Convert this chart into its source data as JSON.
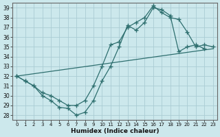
{
  "xlabel": "Humidex (Indice chaleur)",
  "bg_color": "#cce8ec",
  "grid_color": "#aaccd4",
  "line_color": "#2d6e6e",
  "xlim": [
    -0.5,
    23.5
  ],
  "ylim": [
    27.5,
    39.5
  ],
  "yticks": [
    28,
    29,
    30,
    31,
    32,
    33,
    34,
    35,
    36,
    37,
    38,
    39
  ],
  "xticks": [
    0,
    1,
    2,
    3,
    4,
    5,
    6,
    7,
    8,
    9,
    10,
    11,
    12,
    13,
    14,
    15,
    16,
    17,
    18,
    19,
    20,
    21,
    22,
    23
  ],
  "series1_x": [
    0,
    1,
    2,
    3,
    4,
    5,
    6,
    7,
    8,
    9,
    10,
    11,
    12,
    13,
    14,
    15,
    16,
    17,
    18,
    19,
    20,
    21,
    22
  ],
  "series1_y": [
    32.0,
    31.5,
    31.0,
    30.0,
    29.5,
    28.8,
    28.7,
    28.0,
    28.3,
    29.5,
    31.5,
    33.0,
    35.0,
    37.2,
    36.7,
    37.5,
    39.0,
    38.8,
    38.2,
    34.5,
    35.0,
    35.2,
    34.8
  ],
  "series2_x": [
    0,
    1,
    2,
    3,
    4,
    5,
    6,
    7,
    8,
    9,
    10,
    11,
    12,
    13,
    14,
    15,
    16,
    17,
    18,
    19,
    20,
    21,
    22,
    23
  ],
  "series2_y": [
    32.0,
    31.5,
    31.0,
    30.3,
    30.0,
    29.5,
    29.0,
    29.0,
    29.5,
    31.0,
    33.0,
    35.2,
    35.5,
    37.0,
    37.5,
    38.0,
    39.2,
    38.5,
    38.0,
    37.8,
    36.5,
    35.0,
    35.2,
    35.0
  ],
  "series3_x": [
    0,
    23
  ],
  "series3_y": [
    32.0,
    34.8
  ]
}
